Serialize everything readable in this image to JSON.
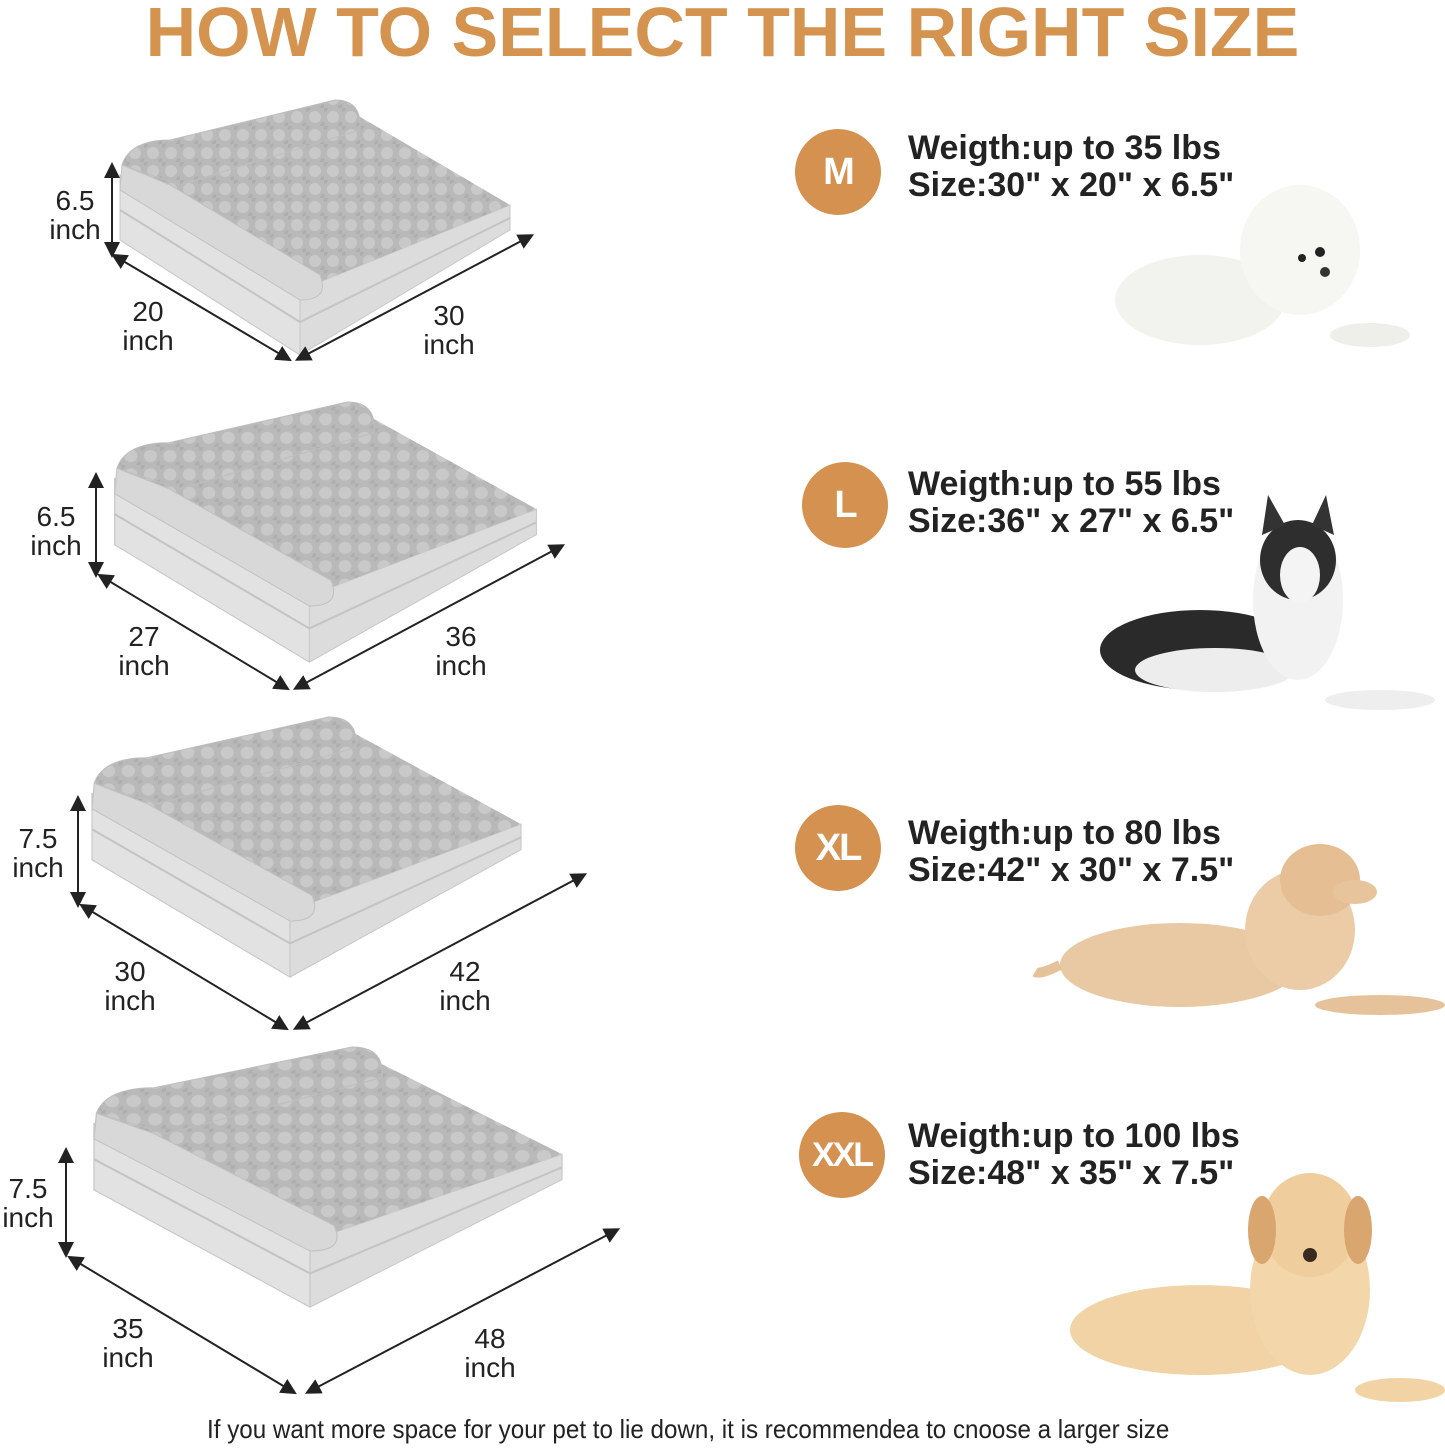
{
  "title": "HOW TO SELECT THE RIGHT SIZE",
  "brand_color": "#D4914F",
  "sizes": [
    {
      "badge": "M",
      "weight": "Weigth:up to 35 lbs",
      "size": "Size:30\" x 20\" x 6.5\"",
      "height": [
        "6.5",
        "inch"
      ],
      "depth": [
        "20",
        "inch"
      ],
      "length": [
        "30",
        "inch"
      ],
      "dog": "white-bichon"
    },
    {
      "badge": "L",
      "weight": "Weigth:up to 55 lbs",
      "size": "Size:36\" x 27\" x 6.5\"",
      "height": [
        "6.5",
        "inch"
      ],
      "depth": [
        "27",
        "inch"
      ],
      "length": [
        "36",
        "inch"
      ],
      "dog": "husky"
    },
    {
      "badge": "XL",
      "weight": "Weigth:up to 80 lbs",
      "size": "Size:42\" x 30\" x 7.5\"",
      "height": [
        "7.5",
        "inch"
      ],
      "depth": [
        "30",
        "inch"
      ],
      "length": [
        "42",
        "inch"
      ],
      "dog": "golden-retriever"
    },
    {
      "badge": "XXL",
      "weight": "Weigth:up to 100 lbs",
      "size": "Size:48\" x 35\" x 7.5\"",
      "height": [
        "7.5",
        "inch"
      ],
      "depth": [
        "35",
        "inch"
      ],
      "length": [
        "48",
        "inch"
      ],
      "dog": "labrador"
    }
  ],
  "footer": "If you want more space for your pet to lie down, it is recommendea to cnoose a larger size"
}
